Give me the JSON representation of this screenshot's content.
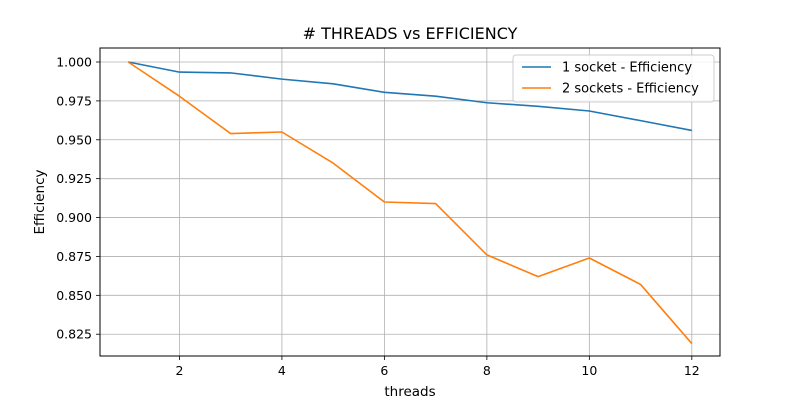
{
  "chart_data": {
    "type": "line",
    "title": "# THREADS vs EFFICIENCY",
    "xlabel": "threads",
    "ylabel": "Efficiency",
    "x": [
      1,
      2,
      3,
      4,
      5,
      6,
      7,
      8,
      9,
      10,
      11,
      12
    ],
    "xlim": [
      0.45,
      12.55
    ],
    "ylim": [
      0.811,
      1.009
    ],
    "xticks": [
      2,
      4,
      6,
      8,
      10,
      12
    ],
    "yticks": [
      0.825,
      0.85,
      0.875,
      0.9,
      0.925,
      0.95,
      0.975,
      1.0
    ],
    "xtick_labels": [
      "2",
      "4",
      "6",
      "8",
      "10",
      "12"
    ],
    "ytick_labels": [
      "0.825",
      "0.850",
      "0.875",
      "0.900",
      "0.925",
      "0.950",
      "0.975",
      "1.000"
    ],
    "grid": true,
    "legend_position": "top-right",
    "series": [
      {
        "name": "1 socket - Efficiency",
        "color": "#1f77b4",
        "values": [
          1.0,
          0.9935,
          0.993,
          0.989,
          0.986,
          0.9805,
          0.978,
          0.9738,
          0.9715,
          0.9685,
          0.9623,
          0.956
        ]
      },
      {
        "name": "2 sockets - Efficiency",
        "color": "#ff7f0e",
        "values": [
          1.0,
          0.978,
          0.954,
          0.955,
          0.935,
          0.91,
          0.909,
          0.876,
          0.862,
          0.874,
          0.857,
          0.819
        ]
      }
    ]
  }
}
